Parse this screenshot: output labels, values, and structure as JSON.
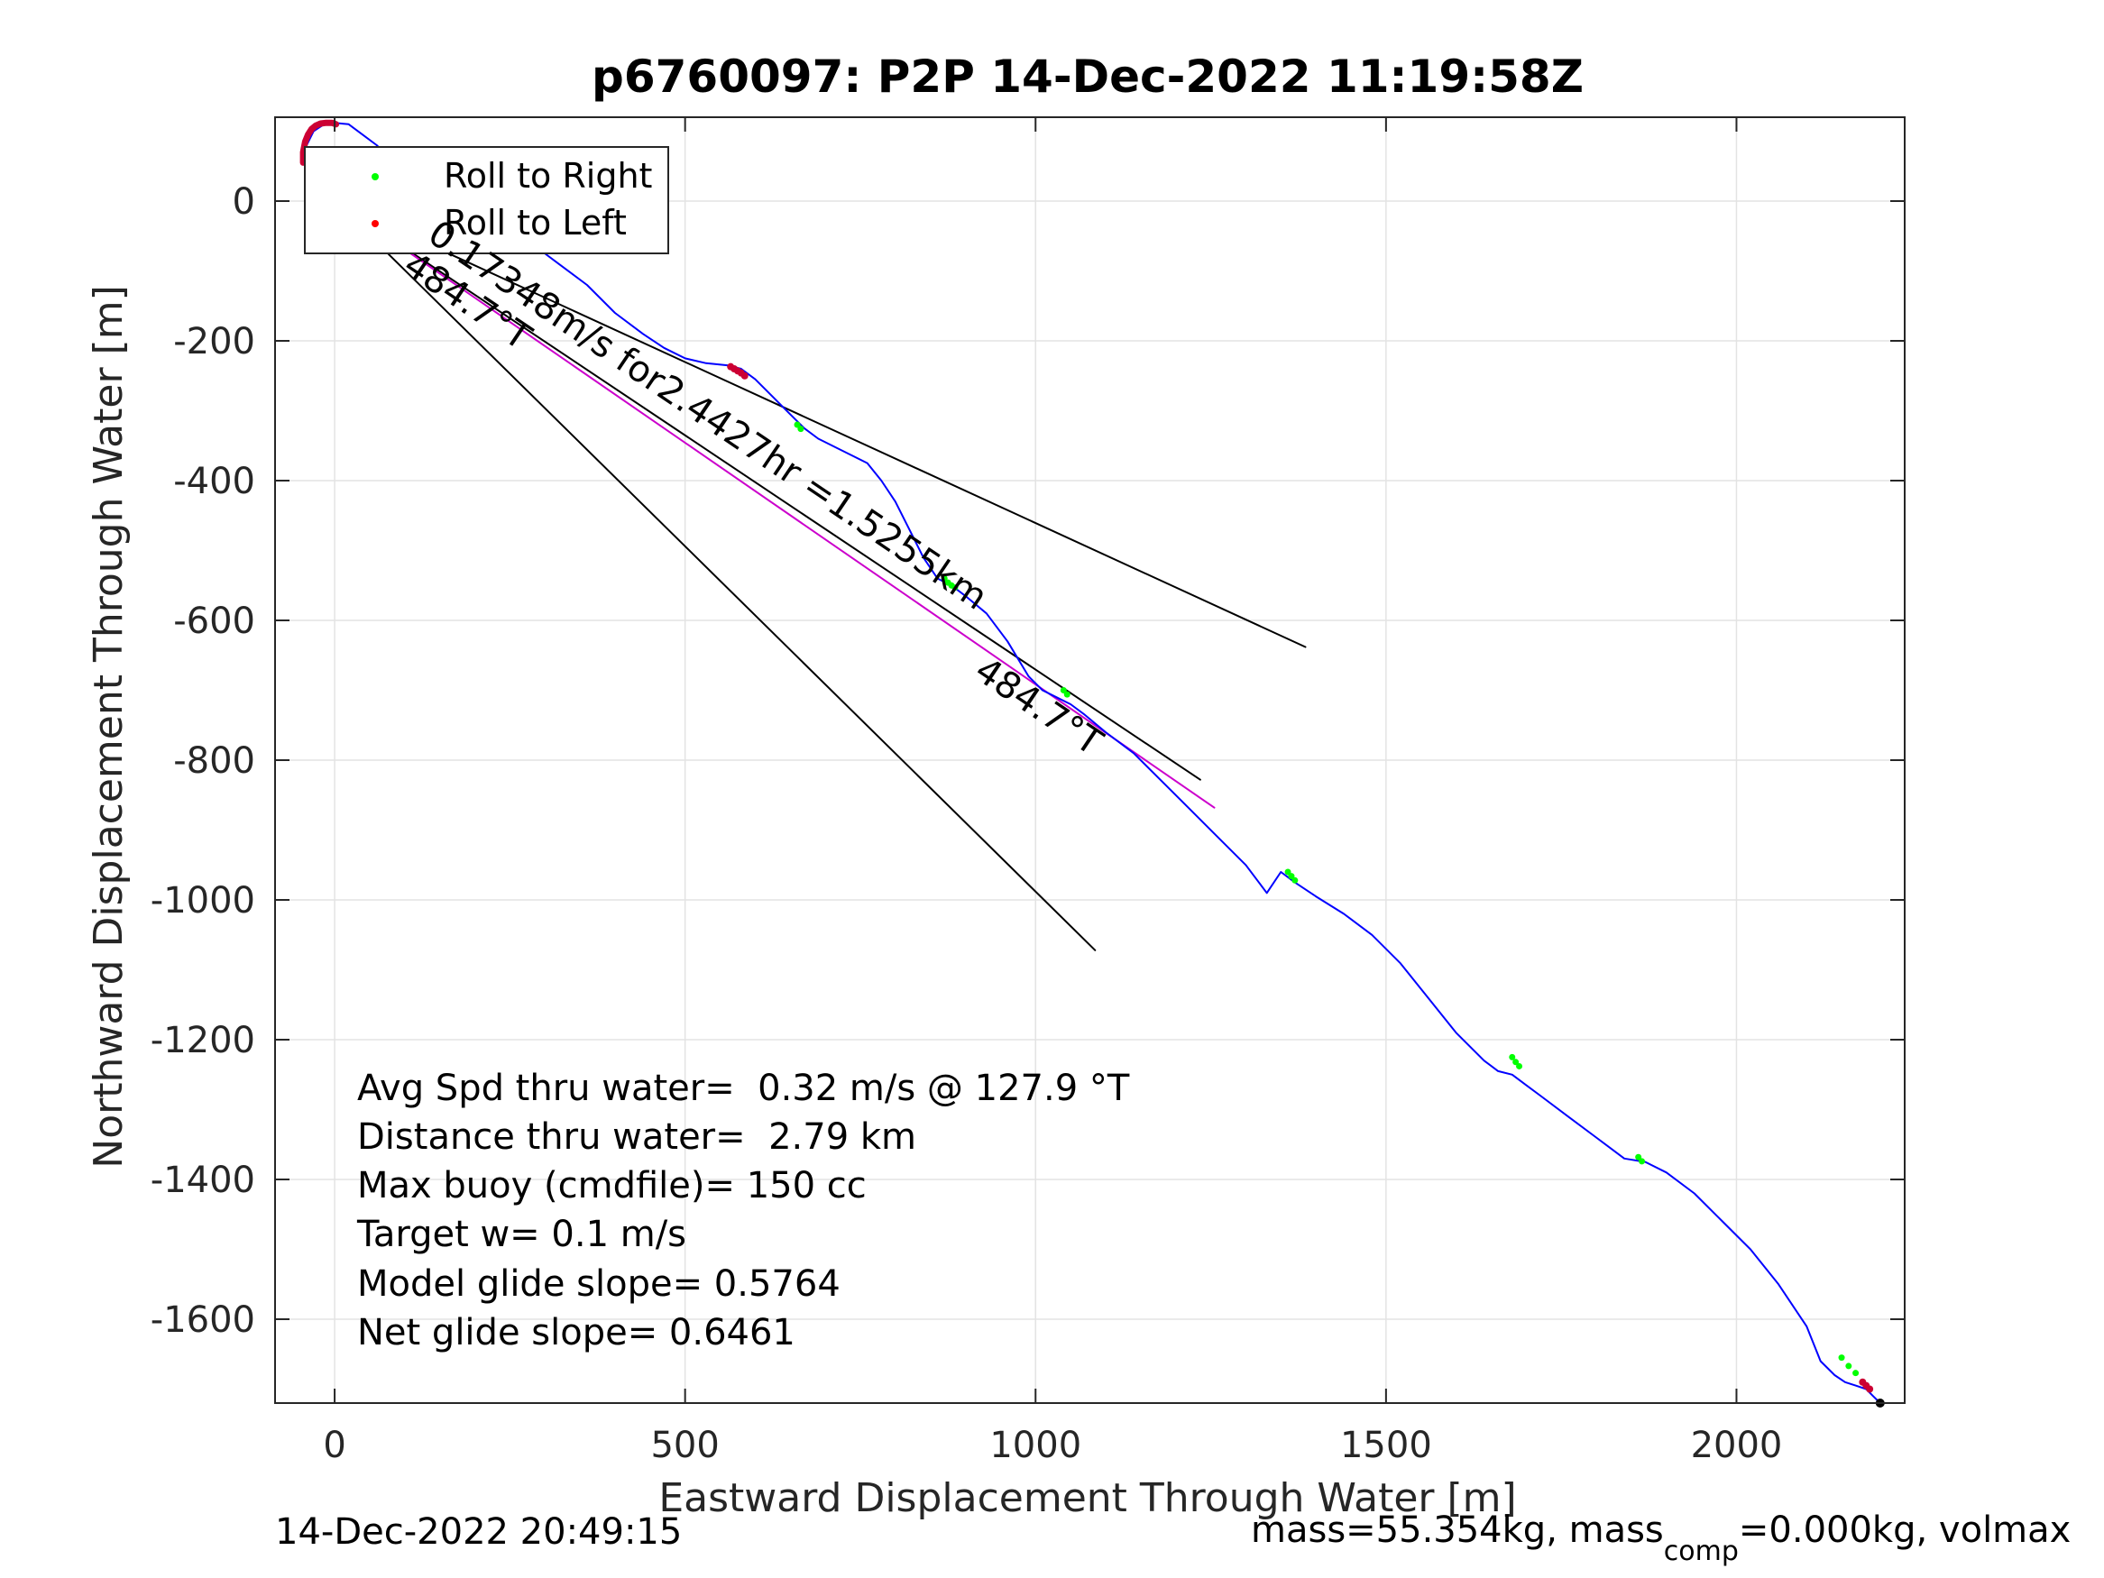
{
  "chart_data": {
    "type": "line",
    "title": "p6760097: P2P 14-Dec-2022 11:19:58Z",
    "xlabel": "Eastward Displacement Through Water [m]",
    "ylabel": "Northward Displacement Through Water [m]",
    "xlim": [
      -85,
      2240
    ],
    "ylim": [
      -1720,
      120
    ],
    "xticks": [
      0,
      500,
      1000,
      1500,
      2000
    ],
    "yticks": [
      0,
      -200,
      -400,
      -600,
      -800,
      -1000,
      -1200,
      -1400,
      -1600
    ],
    "grid": true,
    "legend_placement": "top-left",
    "legend": [
      {
        "label": "Roll to Right",
        "color": "#00ff00"
      },
      {
        "label": "Roll to Left",
        "color": "#ff0000"
      }
    ],
    "series": [
      {
        "color": "#0000ff",
        "x": [
          -45,
          -40,
          -30,
          -15,
          0,
          20,
          40,
          60,
          80,
          100,
          130,
          160,
          200,
          240,
          280,
          320,
          360,
          400,
          440,
          470,
          500,
          530,
          560,
          580,
          600,
          620,
          650,
          670,
          690,
          720,
          760,
          780,
          800,
          820,
          840,
          860,
          870,
          880,
          900,
          930,
          960,
          990,
          1010,
          1030,
          1050,
          1070,
          1100,
          1140,
          1180,
          1220,
          1260,
          1300,
          1330,
          1350,
          1370,
          1400,
          1440,
          1480,
          1520,
          1560,
          1600,
          1640,
          1660,
          1680,
          1700,
          1720,
          1760,
          1800,
          1840,
          1870,
          1900,
          1940,
          1980,
          2020,
          2060,
          2100,
          2120,
          2140,
          2155,
          2170,
          2185,
          2195,
          2205
        ],
        "y": [
          60,
          80,
          100,
          110,
          112,
          110,
          95,
          80,
          60,
          45,
          35,
          20,
          0,
          -30,
          -60,
          -90,
          -120,
          -160,
          -190,
          -210,
          -225,
          -232,
          -235,
          -240,
          -255,
          -275,
          -305,
          -325,
          -340,
          -355,
          -375,
          -400,
          -430,
          -470,
          -510,
          -540,
          -545,
          -550,
          -565,
          -590,
          -630,
          -680,
          -700,
          -710,
          -720,
          -735,
          -760,
          -790,
          -830,
          -870,
          -910,
          -950,
          -990,
          -960,
          -975,
          -995,
          -1020,
          -1050,
          -1090,
          -1140,
          -1190,
          -1230,
          -1245,
          -1250,
          -1265,
          -1280,
          -1310,
          -1340,
          -1370,
          -1375,
          -1390,
          -1420,
          -1460,
          -1500,
          -1550,
          -1610,
          -1660,
          -1680,
          -1690,
          -1695,
          -1700,
          -1710,
          -1720
        ]
      },
      {
        "color": "#0000ff",
        "x": [
          -45,
          -30,
          -15,
          0
        ],
        "y": [
          55,
          35,
          15,
          0
        ]
      }
    ],
    "lines": [
      {
        "color": "#000000",
        "x": [
          0,
          1385
        ],
        "y": [
          0,
          -638
        ]
      },
      {
        "color": "#000000",
        "x": [
          0,
          1085
        ],
        "y": [
          0,
          -1072
        ]
      },
      {
        "color": "#000000",
        "x": [
          0,
          1235
        ],
        "y": [
          0,
          -828
        ]
      },
      {
        "color": "#cc00cc",
        "x": [
          0,
          1255
        ],
        "y": [
          0,
          -868
        ]
      }
    ],
    "arc": {
      "color": "#cc0033",
      "x": [
        -45,
        -45,
        -42,
        -38,
        -33,
        -27,
        -20,
        -12,
        -4,
        2
      ],
      "y": [
        55,
        70,
        85,
        95,
        103,
        108,
        111,
        112,
        112,
        110
      ]
    },
    "roll_right_points": {
      "color": "#00ff00",
      "x": [
        60,
        660,
        665,
        870,
        875,
        880,
        885,
        1040,
        1045,
        1360,
        1365,
        1370,
        1680,
        1685,
        1690,
        1860,
        1865,
        2150,
        2160,
        2170
      ],
      "y": [
        35,
        -320,
        -326,
        -540,
        -546,
        -550,
        -553,
        -700,
        -706,
        -960,
        -966,
        -972,
        -1225,
        -1232,
        -1238,
        -1368,
        -1374,
        -1655,
        -1667,
        -1677
      ]
    },
    "roll_left_points": {
      "color": "#cc0033",
      "x": [
        565,
        570,
        575,
        580,
        585,
        225,
        60,
        2180,
        2185,
        2190
      ],
      "y": [
        -237,
        -240,
        -243,
        -246,
        -250,
        -28,
        -35,
        -1690,
        -1695,
        -1700
      ]
    },
    "end_marker": {
      "x": 2205,
      "y": -1720
    },
    "annotations": [
      {
        "text": "0.17348m/s for2.4427hr =1.5255km",
        "x": 130,
        "y": -55,
        "rotation": 34
      },
      {
        "text": "484.7°T",
        "x": 95,
        "y": -100,
        "rotation": 34
      },
      {
        "text": "484.7°T",
        "x": 910,
        "y": -680,
        "rotation": 34
      }
    ],
    "stats": [
      "Avg Spd thru water=  0.32 m/s @ 127.9 °T",
      "Distance thru water=  2.79 km",
      "Max buoy (cmdfile)= 150 cc",
      "Target w= 0.1 m/s",
      "Model glide slope= 0.5764",
      "Net glide slope= 0.6461"
    ],
    "footer_left": "14-Dec-2022 20:49:15",
    "footer_right_parts": [
      "mass=55.354kg, mass",
      "comp",
      "=0.000kg, volmax"
    ]
  }
}
